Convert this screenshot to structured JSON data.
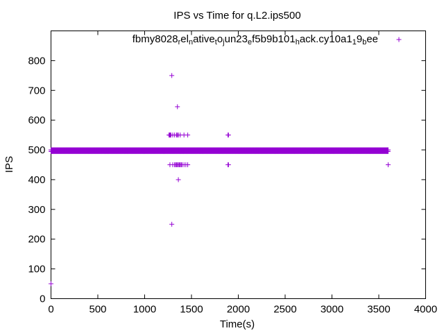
{
  "chart_data": {
    "type": "scatter",
    "title": "IPS vs Time for q.L2.ips500",
    "xlabel": "Time(s)",
    "ylabel": "IPS",
    "xlim": [
      0,
      4000
    ],
    "ylim": [
      0,
      900
    ],
    "xticks": [
      0,
      500,
      1000,
      1500,
      2000,
      2500,
      3000,
      3500,
      4000
    ],
    "yticks": [
      0,
      100,
      200,
      300,
      400,
      500,
      600,
      700,
      800
    ],
    "grid": false,
    "legend_position": "top-right",
    "marker": "plus",
    "series": [
      {
        "name": "fbmy8028_rel_native_to_jun23_ef5b9b101_hack.cy10a1_19_bee",
        "legend_parts": [
          {
            "t": "fbmy8028",
            "sub": false
          },
          {
            "t": "r",
            "sub": true
          },
          {
            "t": "el",
            "sub": false
          },
          {
            "t": "n",
            "sub": true
          },
          {
            "t": "ative",
            "sub": false
          },
          {
            "t": "t",
            "sub": true
          },
          {
            "t": "o",
            "sub": false
          },
          {
            "t": "j",
            "sub": true
          },
          {
            "t": "un23",
            "sub": false
          },
          {
            "t": "e",
            "sub": true
          },
          {
            "t": "f5b9b101",
            "sub": false
          },
          {
            "t": "h",
            "sub": true
          },
          {
            "t": "ack.cy10a1",
            "sub": false
          },
          {
            "t": "1",
            "sub": true
          },
          {
            "t": "9",
            "sub": false
          },
          {
            "t": "b",
            "sub": true
          },
          {
            "t": "ee",
            "sub": false
          }
        ],
        "color": "#9400d3",
        "baseline": {
          "x_start": 0,
          "x_end": 3600,
          "y_values": [
            495,
            500
          ],
          "step": 5
        },
        "points": [
          [
            0,
            50
          ],
          [
            1260,
            550
          ],
          [
            1265,
            550
          ],
          [
            1270,
            550
          ],
          [
            1275,
            550
          ],
          [
            1280,
            550
          ],
          [
            1300,
            550
          ],
          [
            1320,
            550
          ],
          [
            1340,
            550
          ],
          [
            1350,
            550
          ],
          [
            1360,
            550
          ],
          [
            1380,
            550
          ],
          [
            1420,
            550
          ],
          [
            1460,
            550
          ],
          [
            1890,
            550
          ],
          [
            1895,
            550
          ],
          [
            1270,
            450
          ],
          [
            1300,
            450
          ],
          [
            1320,
            450
          ],
          [
            1330,
            450
          ],
          [
            1340,
            450
          ],
          [
            1350,
            450
          ],
          [
            1360,
            450
          ],
          [
            1370,
            450
          ],
          [
            1380,
            450
          ],
          [
            1390,
            450
          ],
          [
            1400,
            450
          ],
          [
            1420,
            450
          ],
          [
            1440,
            450
          ],
          [
            1460,
            450
          ],
          [
            1890,
            450
          ],
          [
            1895,
            450
          ],
          [
            3600,
            450
          ],
          [
            1290,
            750
          ],
          [
            1350,
            645
          ],
          [
            1360,
            400
          ],
          [
            1290,
            250
          ]
        ]
      }
    ]
  }
}
